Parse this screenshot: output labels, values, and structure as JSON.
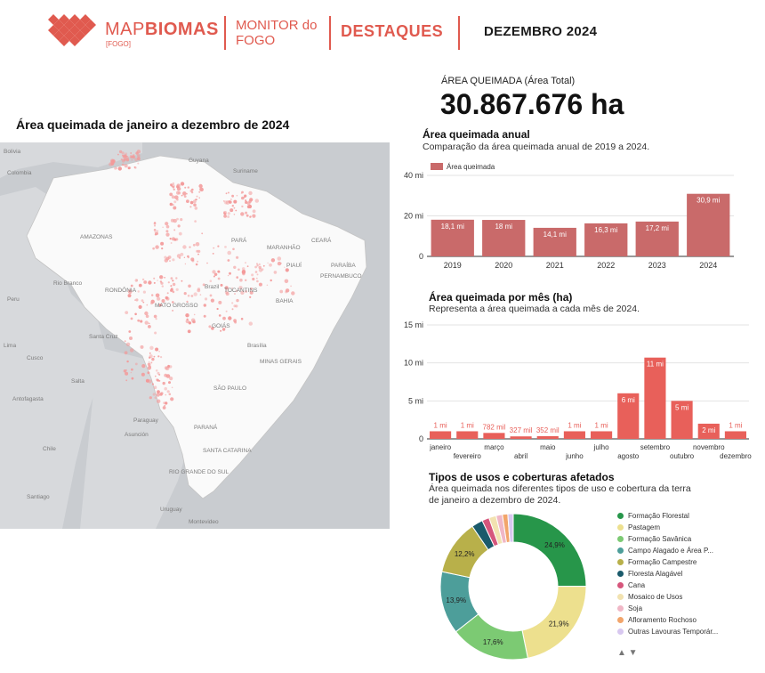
{
  "header": {
    "brand": "MAPBIOMAS",
    "brand_light": "MAP",
    "brand_bold": "BIOMAS",
    "brand_sub": "[FOGO]",
    "monitor_line1": "MONITOR do",
    "monitor_line2": "FOGO",
    "section": "DESTAQUES",
    "period": "DEZEMBRO 2024"
  },
  "kpi": {
    "label": "ÁREA QUEIMADA (Área Total)",
    "value": "30.867.676 ha"
  },
  "map": {
    "title": "Área queimada de janeiro a dezembro de 2024",
    "labels": [
      "Bolivia",
      "Colombia",
      "Rio Branco",
      "Peru",
      "Brazil",
      "Paraguay",
      "Chile",
      "Uruguay",
      "Santiago",
      "Salta",
      "Antofagasta",
      "Asunción",
      "Santa Cruz",
      "AMAZONAS",
      "PARÁ",
      "GOIÁS",
      "MATO GROSSO",
      "BAHIA",
      "Brasília",
      "Suriname",
      "Guyana",
      "CEARÁ",
      "PARAÍBA",
      "PERNAMBUCO",
      "MINAS GERAIS",
      "SÃO PAULO",
      "PARANÁ",
      "SANTA CATARINA",
      "RIO GRANDE DO SUL",
      "TOCANTINS",
      "RONDÔNIA",
      "PIAUÍ",
      "MARANHÃO",
      "Lima",
      "Cusco",
      "Montevideo"
    ]
  },
  "colors": {
    "brand": "#e05a4f",
    "annual_bar": "#c96a6a",
    "monthly_bar": "#e8605a"
  },
  "annual": {
    "title": "Área queimada anual",
    "subtitle": "Comparação da área queimada anual de 2019 a 2024."
  },
  "monthly": {
    "title": "Área queimada por mês (ha)",
    "subtitle": "Representa a área queimada a cada mês de 2024."
  },
  "landuse": {
    "title": "Tipos de usos e coberturas afetados",
    "subtitle_line1": "Área queimada nos diferentes tipos de uso e cobertura da terra",
    "subtitle_line2": "de janeiro a dezembro de 2024.",
    "legend": [
      {
        "label": "Formação Florestal",
        "color": "#27964a"
      },
      {
        "label": "Pastagem",
        "color": "#ede08e"
      },
      {
        "label": "Formação Savânica",
        "color": "#7cca73"
      },
      {
        "label": "Campo Alagado e Área P...",
        "color": "#4d9e9a"
      },
      {
        "label": "Formação Campestre",
        "color": "#b8b04a"
      },
      {
        "label": "Floresta Alagável",
        "color": "#1a5a6b"
      },
      {
        "label": "Cana",
        "color": "#d6567c"
      },
      {
        "label": "Mosaico de Usos",
        "color": "#f2e2b0"
      },
      {
        "label": "Soja",
        "color": "#f0b7c6"
      },
      {
        "label": "Afloramento Rochoso",
        "color": "#f2a56b"
      },
      {
        "label": "Outras Lavouras Temporár...",
        "color": "#d8c8f0"
      }
    ],
    "pager": "▲ ▼"
  },
  "chart_data": [
    {
      "type": "bar",
      "title": "Área queimada anual",
      "categories": [
        "2019",
        "2020",
        "2021",
        "2022",
        "2023",
        "2024"
      ],
      "series": [
        {
          "name": "Área queimada",
          "values": [
            18.1,
            18.0,
            14.1,
            16.3,
            17.2,
            30.9
          ]
        }
      ],
      "data_labels": [
        "18,1 mi",
        "18 mi",
        "14,1 mi",
        "16,3 mi",
        "17,2 mi",
        "30,9 mi"
      ],
      "ylim": [
        0,
        40
      ],
      "yticks": [
        0,
        20,
        40
      ],
      "ytick_labels": [
        "0",
        "20 mi",
        "40 mi"
      ],
      "legend": "top-left",
      "grid": true
    },
    {
      "type": "bar",
      "title": "Área queimada por mês (ha)",
      "categories": [
        "janeiro",
        "fevereiro",
        "março",
        "abril",
        "maio",
        "junho",
        "julho",
        "agosto",
        "setembro",
        "outubro",
        "novembro",
        "dezembro"
      ],
      "values": [
        1.0,
        1.0,
        0.782,
        0.327,
        0.352,
        1.0,
        1.0,
        6.0,
        10.7,
        5.0,
        2.0,
        1.0
      ],
      "data_labels": [
        "1 mi",
        "1 mi",
        "782 mil",
        "327 mil",
        "352 mil",
        "1 mi",
        "1 mi",
        "6 mi",
        "11 mi",
        "5 mi",
        "2 mi",
        "1 mi"
      ],
      "ylim": [
        0,
        15
      ],
      "yticks": [
        0,
        5,
        10,
        15
      ],
      "ytick_labels": [
        "0",
        "5 mi",
        "10 mi",
        "15 mi"
      ],
      "grid": true
    },
    {
      "type": "pie",
      "title": "Tipos de usos e coberturas afetados",
      "labels": [
        "Formação Florestal",
        "Pastagem",
        "Formação Savânica",
        "Campo Alagado e Área P...",
        "Formação Campestre",
        "Floresta Alagável",
        "Cana",
        "Mosaico de Usos",
        "Soja",
        "Afloramento Rochoso",
        "Outras Lavouras Temporár..."
      ],
      "values": [
        24.9,
        21.9,
        17.6,
        13.9,
        12.2,
        2.5,
        1.6,
        1.6,
        1.4,
        1.2,
        1.2
      ],
      "data_labels": [
        "24,9%",
        "21,9%",
        "17,6%",
        "13,9%",
        "12,2%",
        "",
        "",
        "",
        "",
        "",
        ""
      ],
      "donut": true,
      "legend": "right"
    }
  ]
}
